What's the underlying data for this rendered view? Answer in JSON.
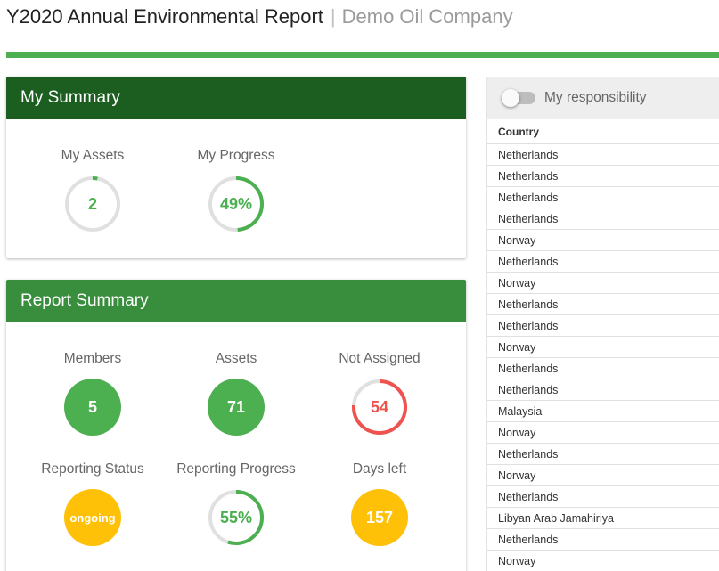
{
  "header": {
    "title": "Y2020 Annual Environmental Report",
    "separator": "|",
    "company": "Demo Oil Company"
  },
  "colors": {
    "dark_green": "#1b5e20",
    "green": "#388e3c",
    "accent_green": "#4caf50",
    "red": "#ef5350",
    "amber": "#ffc107",
    "track": "#e0e0e0"
  },
  "my_summary": {
    "title": "My Summary",
    "assets": {
      "label": "My Assets",
      "value": "2",
      "fraction": 0.03
    },
    "progress": {
      "label": "My Progress",
      "value": "49%",
      "fraction": 0.49
    }
  },
  "report_summary": {
    "title": "Report Summary",
    "members": {
      "label": "Members",
      "value": "5"
    },
    "assets": {
      "label": "Assets",
      "value": "71"
    },
    "not_assigned": {
      "label": "Not Assigned",
      "value": "54",
      "fraction": 0.76
    },
    "reporting_status": {
      "label": "Reporting Status",
      "value": "ongoing"
    },
    "reporting_progress": {
      "label": "Reporting Progress",
      "value": "55%",
      "fraction": 0.55
    },
    "days_left": {
      "label": "Days left",
      "value": "157"
    }
  },
  "sidebar": {
    "toggle_label": "My responsibility",
    "toggle_on": false,
    "column_header": "Country",
    "rows": [
      "Netherlands",
      "Netherlands",
      "Netherlands",
      "Netherlands",
      "Norway",
      "Netherlands",
      "Norway",
      "Netherlands",
      "Netherlands",
      "Norway",
      "Netherlands",
      "Netherlands",
      "Malaysia",
      "Norway",
      "Netherlands",
      "Norway",
      "Netherlands",
      "Libyan Arab Jamahiriya",
      "Netherlands",
      "Norway"
    ]
  }
}
